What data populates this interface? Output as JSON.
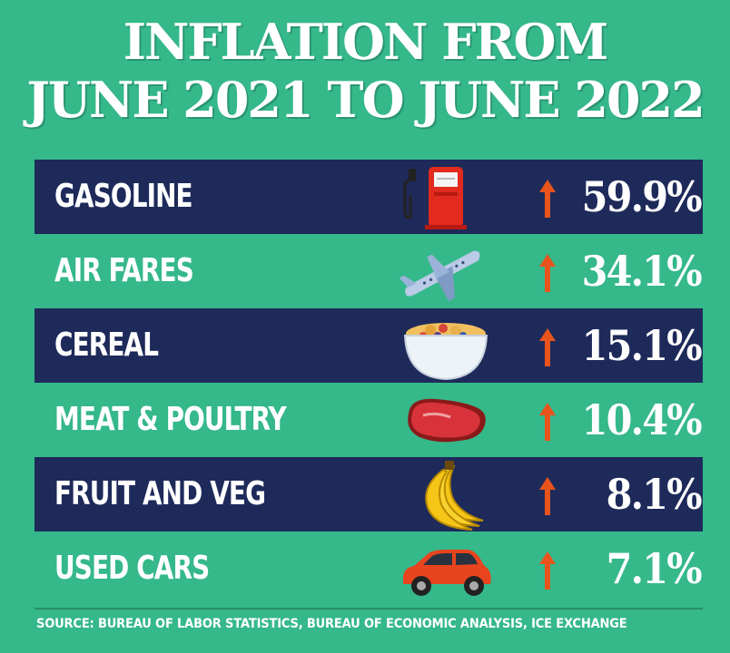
{
  "title_line1": "INFLATION FROM",
  "title_line2": "JUNE 2021 TO JUNE 2022",
  "source": "SOURCE: BUREAU OF LABOR STATISTICS, BUREAU OF ECONOMIC ANALYSIS, ICE EXCHANGE",
  "colors": {
    "background": "#35b88a",
    "dark_row": "#1e2a5a",
    "arrow": "#e8541c",
    "text": "#ffffff"
  },
  "chart_data": {
    "type": "table",
    "title": "INFLATION FROM JUNE 2021 TO JUNE 2022",
    "columns": [
      "category",
      "change"
    ],
    "rows": [
      {
        "category": "GASOLINE",
        "label": "59.9%",
        "value": 59.9,
        "icon": "gas-pump-icon",
        "direction": "up"
      },
      {
        "category": "AIR FARES",
        "label": "34.1%",
        "value": 34.1,
        "icon": "airplane-icon",
        "direction": "up"
      },
      {
        "category": "CEREAL",
        "label": "15.1%",
        "value": 15.1,
        "icon": "cereal-bowl-icon",
        "direction": "up"
      },
      {
        "category": "MEAT & POULTRY",
        "label": "10.4%",
        "value": 10.4,
        "icon": "steak-icon",
        "direction": "up"
      },
      {
        "category": "FRUIT AND VEG",
        "label": "8.1%",
        "value": 8.1,
        "icon": "banana-icon",
        "direction": "up"
      },
      {
        "category": "USED CARS",
        "label": "7.1%",
        "value": 7.1,
        "icon": "car-icon",
        "direction": "up"
      }
    ]
  }
}
